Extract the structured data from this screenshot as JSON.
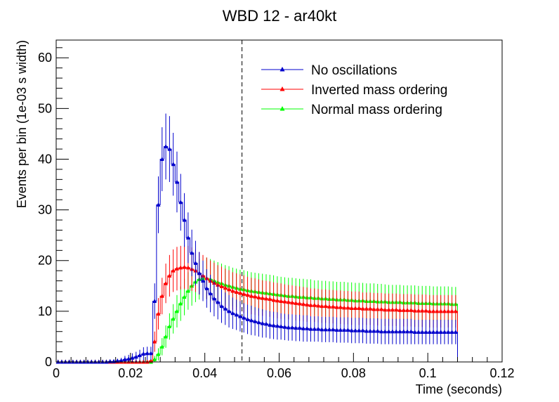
{
  "chart_data": {
    "type": "line",
    "title": "WBD 12 - ar40kt",
    "xlabel": "Time (seconds)",
    "ylabel": "Events per bin (1e-03 s width)",
    "xlim": [
      0,
      0.12
    ],
    "ylim": [
      0,
      63.5
    ],
    "xticks": [
      0,
      0.02,
      0.04,
      0.06,
      0.08,
      0.1,
      0.12
    ],
    "xtick_labels": [
      "0",
      "0.02",
      "0.04",
      "0.06",
      "0.08",
      "0.1",
      "0.12"
    ],
    "yticks": [
      0,
      10,
      20,
      30,
      40,
      50,
      60
    ],
    "ytick_labels": [
      "0",
      "10",
      "20",
      "30",
      "40",
      "50",
      "60"
    ],
    "vline_x": 0.05,
    "grid": false,
    "legend_position": "top-right",
    "x": [
      0.0005,
      0.0015,
      0.0025,
      0.0035,
      0.0045,
      0.0055,
      0.0065,
      0.0075,
      0.0085,
      0.0095,
      0.0105,
      0.0115,
      0.0125,
      0.0135,
      0.0145,
      0.0155,
      0.0165,
      0.0175,
      0.0185,
      0.0195,
      0.0205,
      0.0215,
      0.0225,
      0.0235,
      0.0245,
      0.0255,
      0.0265,
      0.0275,
      0.0285,
      0.0295,
      0.0305,
      0.0315,
      0.0325,
      0.0335,
      0.0345,
      0.0355,
      0.0365,
      0.0375,
      0.0385,
      0.0395,
      0.0405,
      0.0415,
      0.0425,
      0.0435,
      0.0445,
      0.0455,
      0.0465,
      0.0475,
      0.0485,
      0.0495,
      0.0505,
      0.0515,
      0.0525,
      0.0535,
      0.0545,
      0.0555,
      0.0565,
      0.0575,
      0.0585,
      0.0595,
      0.0605,
      0.0615,
      0.0625,
      0.0635,
      0.0645,
      0.0655,
      0.0665,
      0.0675,
      0.0685,
      0.0695,
      0.0705,
      0.0715,
      0.0725,
      0.0735,
      0.0745,
      0.0755,
      0.0765,
      0.0775,
      0.0785,
      0.0795,
      0.0805,
      0.0815,
      0.0825,
      0.0835,
      0.0845,
      0.0855,
      0.0865,
      0.0875,
      0.0885,
      0.0895,
      0.0905,
      0.0915,
      0.0925,
      0.0935,
      0.0945,
      0.0955,
      0.0965,
      0.0975,
      0.0985,
      0.0995,
      0.1005,
      0.1015,
      0.1025,
      0.1035,
      0.1045,
      0.1055,
      0.1065,
      0.1075
    ],
    "series": [
      {
        "name": "No oscillations",
        "color": "#0000cc",
        "values": [
          0,
          0,
          0,
          0,
          0,
          0,
          0,
          0,
          0,
          0,
          0,
          0,
          0,
          0,
          0.1,
          0.1,
          0.2,
          0.3,
          0.5,
          0.6,
          0.8,
          1.0,
          1.3,
          1.6,
          1.7,
          1.7,
          12.0,
          31.0,
          40.0,
          42.5,
          42.0,
          39.0,
          35.5,
          31.5,
          28.0,
          24.5,
          21.5,
          19.5,
          17.5,
          16.0,
          14.5,
          13.5,
          12.5,
          11.8,
          11.0,
          10.5,
          10.0,
          9.6,
          9.3,
          9.0,
          8.7,
          8.4,
          8.2,
          8.0,
          7.8,
          7.6,
          7.5,
          7.3,
          7.2,
          7.1,
          7.0,
          6.9,
          6.8,
          6.8,
          6.7,
          6.7,
          6.6,
          6.6,
          6.5,
          6.5,
          6.5,
          6.4,
          6.4,
          6.4,
          6.4,
          6.3,
          6.3,
          6.3,
          6.3,
          6.2,
          6.2,
          6.2,
          6.2,
          6.1,
          6.1,
          6.1,
          6.1,
          6.0,
          6.0,
          6.0,
          6.0,
          6.0,
          6.0,
          6.0,
          6.0,
          6.0,
          5.9,
          5.9,
          5.9,
          5.9,
          5.9,
          5.9,
          5.9,
          5.9,
          5.9,
          5.9,
          5.9,
          5.9
        ],
        "errors": [
          0,
          0,
          0,
          0,
          0,
          0,
          0,
          0,
          0,
          0,
          0,
          0,
          0,
          0,
          0.3,
          0.3,
          0.4,
          0.5,
          0.7,
          0.8,
          0.9,
          1.0,
          1.1,
          1.3,
          1.3,
          1.3,
          3.5,
          5.6,
          6.3,
          6.5,
          6.5,
          6.2,
          6.0,
          5.6,
          5.3,
          5.0,
          4.6,
          4.4,
          4.2,
          4.0,
          3.8,
          3.7,
          3.5,
          3.4,
          3.3,
          3.2,
          3.2,
          3.1,
          3.0,
          3.0,
          2.9,
          2.9,
          2.9,
          2.8,
          2.8,
          2.8,
          2.7,
          2.7,
          2.7,
          2.7,
          2.6,
          2.6,
          2.6,
          2.6,
          2.6,
          2.6,
          2.6,
          2.6,
          2.5,
          2.5,
          2.5,
          2.5,
          2.5,
          2.5,
          2.5,
          2.5,
          2.5,
          2.5,
          2.5,
          2.5,
          2.5,
          2.5,
          2.5,
          2.5,
          2.5,
          2.5,
          2.5,
          2.5,
          2.5,
          2.5,
          2.5,
          2.5,
          2.5,
          2.5,
          2.5,
          2.5,
          2.4,
          2.4,
          2.4,
          2.4,
          2.4,
          2.4,
          2.4,
          2.4,
          2.4,
          2.4,
          2.4,
          2.4
        ]
      },
      {
        "name": "Inverted mass ordering",
        "color": "#ff0000",
        "values": [
          0,
          0,
          0,
          0,
          0,
          0,
          0,
          0,
          0,
          0,
          0,
          0,
          0,
          0,
          0,
          0,
          0,
          0,
          0,
          0,
          0,
          0,
          0,
          0,
          0,
          0.2,
          4.0,
          9.5,
          13.0,
          15.5,
          17.0,
          18.0,
          18.4,
          18.6,
          18.7,
          18.6,
          18.3,
          18.0,
          17.5,
          17.0,
          16.5,
          16.0,
          15.6,
          15.2,
          14.9,
          14.6,
          14.3,
          14.0,
          13.8,
          13.6,
          13.4,
          13.2,
          13.0,
          12.9,
          12.7,
          12.6,
          12.5,
          12.4,
          12.2,
          12.1,
          12.0,
          11.9,
          11.8,
          11.7,
          11.6,
          11.5,
          11.4,
          11.3,
          11.2,
          11.2,
          11.1,
          11.0,
          11.0,
          10.9,
          10.9,
          10.8,
          10.8,
          10.7,
          10.7,
          10.6,
          10.6,
          10.6,
          10.5,
          10.5,
          10.5,
          10.4,
          10.4,
          10.4,
          10.3,
          10.3,
          10.3,
          10.3,
          10.2,
          10.2,
          10.2,
          10.2,
          10.1,
          10.1,
          10.1,
          10.1,
          10.0,
          10.0,
          10.0,
          10.0,
          10.0,
          10.0,
          10.0,
          10.0
        ],
        "errors": [
          0,
          0,
          0,
          0,
          0,
          0,
          0,
          0,
          0,
          0,
          0,
          0,
          0,
          0,
          0,
          0,
          0,
          0,
          0,
          0,
          0,
          0,
          0,
          0,
          0,
          0.4,
          2.0,
          3.1,
          3.6,
          3.9,
          4.1,
          4.2,
          4.3,
          4.3,
          4.3,
          4.3,
          4.3,
          4.2,
          4.2,
          4.1,
          4.1,
          4.0,
          4.0,
          3.9,
          3.9,
          3.8,
          3.8,
          3.7,
          3.7,
          3.7,
          3.7,
          3.6,
          3.6,
          3.6,
          3.6,
          3.5,
          3.5,
          3.5,
          3.5,
          3.5,
          3.5,
          3.4,
          3.4,
          3.4,
          3.4,
          3.4,
          3.4,
          3.4,
          3.3,
          3.3,
          3.3,
          3.3,
          3.3,
          3.3,
          3.3,
          3.3,
          3.3,
          3.3,
          3.3,
          3.3,
          3.3,
          3.3,
          3.2,
          3.2,
          3.2,
          3.2,
          3.2,
          3.2,
          3.2,
          3.2,
          3.2,
          3.2,
          3.2,
          3.2,
          3.2,
          3.2,
          3.2,
          3.2,
          3.2,
          3.2,
          3.2,
          3.2,
          3.2,
          3.2,
          3.2,
          3.2,
          3.2,
          3.2
        ]
      },
      {
        "name": "Normal mass ordering",
        "color": "#00ff00",
        "values": [
          0,
          0,
          0,
          0,
          0,
          0,
          0,
          0,
          0,
          0,
          0,
          0,
          0,
          0,
          0,
          0,
          0,
          0,
          0,
          0,
          0,
          0,
          0,
          0,
          0,
          0,
          0.5,
          1.5,
          3.0,
          5.0,
          7.0,
          8.5,
          10.0,
          11.5,
          12.8,
          14.0,
          15.0,
          15.8,
          16.3,
          16.5,
          16.5,
          16.3,
          16.0,
          15.7,
          15.5,
          15.2,
          15.0,
          14.8,
          14.6,
          14.4,
          14.3,
          14.1,
          14.0,
          13.9,
          13.8,
          13.7,
          13.6,
          13.5,
          13.4,
          13.3,
          13.2,
          13.1,
          13.0,
          13.0,
          12.9,
          12.8,
          12.8,
          12.7,
          12.7,
          12.6,
          12.6,
          12.5,
          12.5,
          12.4,
          12.4,
          12.3,
          12.3,
          12.3,
          12.2,
          12.2,
          12.1,
          12.1,
          12.1,
          12.0,
          12.0,
          12.0,
          11.9,
          11.9,
          11.9,
          11.8,
          11.8,
          11.8,
          11.8,
          11.7,
          11.7,
          11.7,
          11.7,
          11.6,
          11.6,
          11.6,
          11.6,
          11.5,
          11.5,
          11.5,
          11.5,
          11.5,
          11.4,
          11.4
        ],
        "errors": [
          0,
          0,
          0,
          0,
          0,
          0,
          0,
          0,
          0,
          0,
          0,
          0,
          0,
          0,
          0,
          0,
          0,
          0,
          0,
          0,
          0,
          0,
          0,
          0,
          0,
          0,
          0.7,
          1.2,
          1.7,
          2.2,
          2.6,
          2.9,
          3.2,
          3.4,
          3.6,
          3.7,
          3.9,
          4.0,
          4.0,
          4.1,
          4.1,
          4.0,
          4.0,
          4.0,
          3.9,
          3.9,
          3.9,
          3.8,
          3.8,
          3.8,
          3.8,
          3.8,
          3.7,
          3.7,
          3.7,
          3.7,
          3.7,
          3.7,
          3.7,
          3.6,
          3.6,
          3.6,
          3.6,
          3.6,
          3.6,
          3.6,
          3.6,
          3.6,
          3.6,
          3.5,
          3.5,
          3.5,
          3.5,
          3.5,
          3.5,
          3.5,
          3.5,
          3.5,
          3.5,
          3.5,
          3.5,
          3.5,
          3.5,
          3.5,
          3.5,
          3.5,
          3.5,
          3.5,
          3.4,
          3.4,
          3.4,
          3.4,
          3.4,
          3.4,
          3.4,
          3.4,
          3.4,
          3.4,
          3.4,
          3.4,
          3.4,
          3.4,
          3.4,
          3.4,
          3.4,
          3.4,
          3.4,
          3.4
        ]
      }
    ]
  }
}
